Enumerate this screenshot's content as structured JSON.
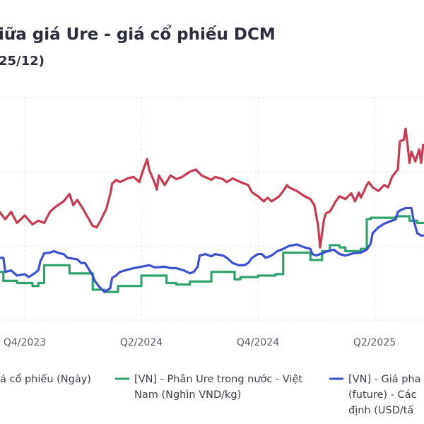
{
  "chart_data": {
    "type": "line",
    "title": "iữa giá Ure - giá cổ phiếu DCM",
    "subtitle": "25/12)",
    "xlabel": "",
    "ylabel": "",
    "x_unit": "months since start of Q4/2023",
    "x_range": [
      -1.3,
      20.5
    ],
    "y_range": [
      0,
      30
    ],
    "grid": true,
    "x_ticks": [
      {
        "value": 0,
        "label": "Q4/2023"
      },
      {
        "value": 6,
        "label": "Q2/2024"
      },
      {
        "value": 12,
        "label": "Q4/2024"
      },
      {
        "value": 18,
        "label": "Q2/2025"
      }
    ],
    "y_gridlines": [
      0,
      10,
      20,
      30
    ],
    "legend_placement": "bottom",
    "series": [
      {
        "name": "iá cổ phiếu (Ngày)",
        "legend_lines": [
          "iá cổ phiếu (Ngày)"
        ],
        "color": "#c8394f",
        "step": false,
        "points": [
          [
            -1.3,
            14.6
          ],
          [
            -1.0,
            13.6
          ],
          [
            -0.7,
            14.6
          ],
          [
            -0.4,
            13.1
          ],
          [
            0,
            14.1
          ],
          [
            0.4,
            12.9
          ],
          [
            0.7,
            13.4
          ],
          [
            1.0,
            13.1
          ],
          [
            1.3,
            14.6
          ],
          [
            1.6,
            15.3
          ],
          [
            2.0,
            16.0
          ],
          [
            2.3,
            17.0
          ],
          [
            2.5,
            15.5
          ],
          [
            2.7,
            16.2
          ],
          [
            3.0,
            15.0
          ],
          [
            3.3,
            13.6
          ],
          [
            3.5,
            12.7
          ],
          [
            3.7,
            12.5
          ],
          [
            3.9,
            13.4
          ],
          [
            4.2,
            15.0
          ],
          [
            4.4,
            17.0
          ],
          [
            4.5,
            18.4
          ],
          [
            4.7,
            18.9
          ],
          [
            4.9,
            18.6
          ],
          [
            5.3,
            19.1
          ],
          [
            5.6,
            19.3
          ],
          [
            5.9,
            18.6
          ],
          [
            6.1,
            20.3
          ],
          [
            6.3,
            21.7
          ],
          [
            6.4,
            20.3
          ],
          [
            6.7,
            18.4
          ],
          [
            6.8,
            17.6
          ],
          [
            6.9,
            19.5
          ],
          [
            7.2,
            18.2
          ],
          [
            7.5,
            19.5
          ],
          [
            7.8,
            19.0
          ],
          [
            8.1,
            19.3
          ],
          [
            8.5,
            20.0
          ],
          [
            8.8,
            20.3
          ],
          [
            9.1,
            19.5
          ],
          [
            9.6,
            18.9
          ],
          [
            9.8,
            19.3
          ],
          [
            10.2,
            19.0
          ],
          [
            10.4,
            18.6
          ],
          [
            10.7,
            19.1
          ],
          [
            11.1,
            18.6
          ],
          [
            11.5,
            18.2
          ],
          [
            11.7,
            17.2
          ],
          [
            12.0,
            16.7
          ],
          [
            12.3,
            16.0
          ],
          [
            12.5,
            16.5
          ],
          [
            12.7,
            16.0
          ],
          [
            13.1,
            16.7
          ],
          [
            13.3,
            17.4
          ],
          [
            13.5,
            18.2
          ],
          [
            13.6,
            17.9
          ],
          [
            14.0,
            17.4
          ],
          [
            14.4,
            16.7
          ],
          [
            14.7,
            16.3
          ],
          [
            14.9,
            15.5
          ],
          [
            15.1,
            12.7
          ],
          [
            15.2,
            9.8
          ],
          [
            15.4,
            13.6
          ],
          [
            15.5,
            14.4
          ],
          [
            15.7,
            14.6
          ],
          [
            16.0,
            16.0
          ],
          [
            16.2,
            16.7
          ],
          [
            16.5,
            16.3
          ],
          [
            16.8,
            17.1
          ],
          [
            17.0,
            16.0
          ],
          [
            17.2,
            17.2
          ],
          [
            17.3,
            16.5
          ],
          [
            17.6,
            18.2
          ],
          [
            17.7,
            18.6
          ],
          [
            17.9,
            17.9
          ],
          [
            18.2,
            17.4
          ],
          [
            18.5,
            18.2
          ],
          [
            18.7,
            17.9
          ],
          [
            18.9,
            19.3
          ],
          [
            19.1,
            20.0
          ],
          [
            19.2,
            20.3
          ],
          [
            19.3,
            24.1
          ],
          [
            19.5,
            24.3
          ],
          [
            19.6,
            25.8
          ],
          [
            19.7,
            23.6
          ],
          [
            19.8,
            21.2
          ],
          [
            19.9,
            22.7
          ],
          [
            20.1,
            21.4
          ],
          [
            20.3,
            23.0
          ],
          [
            20.4,
            21.2
          ],
          [
            20.5,
            23.6
          ]
        ]
      },
      {
        "name": "[VN] - Phân Ure trong nước - Việt Nam (Nghìn VND/kg)",
        "legend_lines": [
          "[VN] - Phân Ure trong nước - Việt",
          "Nam (Nghìn VND/kg)"
        ],
        "color": "#2ea36b",
        "step": true,
        "points": [
          [
            -1.3,
            6.5
          ],
          [
            -1.1,
            5.3
          ],
          [
            -0.4,
            5.0
          ],
          [
            0.4,
            4.6
          ],
          [
            0.7,
            5.0
          ],
          [
            1.0,
            7.4
          ],
          [
            2.3,
            6.3
          ],
          [
            3.5,
            4.1
          ],
          [
            4.1,
            3.8
          ],
          [
            4.8,
            4.6
          ],
          [
            6.0,
            6.0
          ],
          [
            7.3,
            5.0
          ],
          [
            7.8,
            4.8
          ],
          [
            8.5,
            5.2
          ],
          [
            9.6,
            6.5
          ],
          [
            10.8,
            5.5
          ],
          [
            11.1,
            5.8
          ],
          [
            12.0,
            6.0
          ],
          [
            12.9,
            6.2
          ],
          [
            13.3,
            9.1
          ],
          [
            14.7,
            8.1
          ],
          [
            15.3,
            9.3
          ],
          [
            15.7,
            10.1
          ],
          [
            16.2,
            9.8
          ],
          [
            16.5,
            9.3
          ],
          [
            17.3,
            9.6
          ],
          [
            17.6,
            13.6
          ],
          [
            17.8,
            13.8
          ],
          [
            19.1,
            14.0
          ],
          [
            19.8,
            13.4
          ],
          [
            20.2,
            13.1
          ],
          [
            20.5,
            13.1
          ]
        ]
      },
      {
        "name": "[VN] - Giá pha (future) - Các định (USD/tấ",
        "legend_lines": [
          "[VN] - Giá pha",
          "(future) - Các",
          "định (USD/tấ"
        ],
        "color": "#3a4fd1",
        "step": false,
        "points": [
          [
            -1.3,
            8.4
          ],
          [
            -1.1,
            8.4
          ],
          [
            -1.0,
            6.5
          ],
          [
            -0.7,
            6.7
          ],
          [
            -0.4,
            6.0
          ],
          [
            0,
            6.2
          ],
          [
            0.2,
            5.8
          ],
          [
            0.5,
            6.3
          ],
          [
            0.7,
            6.7
          ],
          [
            0.8,
            7.9
          ],
          [
            1.0,
            9.0
          ],
          [
            1.3,
            9.1
          ],
          [
            1.5,
            9.3
          ],
          [
            1.8,
            9.0
          ],
          [
            2.0,
            8.9
          ],
          [
            2.2,
            8.4
          ],
          [
            2.7,
            8.2
          ],
          [
            2.9,
            7.7
          ],
          [
            3.1,
            7.7
          ],
          [
            3.5,
            6.0
          ],
          [
            3.6,
            5.3
          ],
          [
            3.8,
            4.6
          ],
          [
            4.1,
            3.8
          ],
          [
            4.4,
            4.3
          ],
          [
            4.5,
            5.7
          ],
          [
            4.7,
            6.0
          ],
          [
            4.9,
            6.5
          ],
          [
            5.3,
            6.8
          ],
          [
            5.6,
            7.0
          ],
          [
            6.0,
            7.2
          ],
          [
            6.4,
            7.4
          ],
          [
            6.7,
            7.1
          ],
          [
            7.2,
            7.2
          ],
          [
            7.5,
            7.0
          ],
          [
            7.8,
            7.0
          ],
          [
            8.2,
            6.7
          ],
          [
            8.5,
            6.3
          ],
          [
            8.7,
            6.5
          ],
          [
            8.9,
            7.2
          ],
          [
            9.0,
            8.7
          ],
          [
            9.3,
            8.9
          ],
          [
            9.6,
            8.6
          ],
          [
            9.8,
            8.9
          ],
          [
            10.2,
            8.7
          ],
          [
            10.4,
            8.4
          ],
          [
            10.7,
            7.7
          ],
          [
            11.0,
            7.4
          ],
          [
            11.3,
            7.4
          ],
          [
            11.5,
            7.7
          ],
          [
            11.7,
            8.4
          ],
          [
            12.0,
            8.9
          ],
          [
            12.2,
            8.9
          ],
          [
            12.4,
            8.4
          ],
          [
            12.7,
            8.7
          ],
          [
            13.0,
            9.3
          ],
          [
            13.3,
            9.6
          ],
          [
            13.6,
            10.0
          ],
          [
            14.0,
            10.2
          ],
          [
            14.4,
            9.8
          ],
          [
            14.7,
            9.6
          ],
          [
            14.8,
            8.9
          ],
          [
            15.0,
            8.7
          ],
          [
            15.3,
            9.0
          ],
          [
            15.6,
            9.3
          ],
          [
            15.9,
            9.5
          ],
          [
            16.2,
            8.9
          ],
          [
            16.5,
            8.7
          ],
          [
            16.9,
            9.0
          ],
          [
            17.3,
            9.1
          ],
          [
            17.6,
            9.5
          ],
          [
            17.8,
            10.3
          ],
          [
            17.9,
            11.7
          ],
          [
            18.2,
            12.5
          ],
          [
            18.5,
            13.0
          ],
          [
            18.9,
            13.4
          ],
          [
            19.1,
            13.6
          ],
          [
            19.2,
            14.6
          ],
          [
            19.4,
            14.9
          ],
          [
            19.6,
            15.1
          ],
          [
            19.9,
            15.1
          ],
          [
            20.0,
            13.6
          ],
          [
            20.2,
            11.7
          ],
          [
            20.4,
            11.4
          ],
          [
            20.5,
            11.4
          ]
        ]
      }
    ]
  }
}
